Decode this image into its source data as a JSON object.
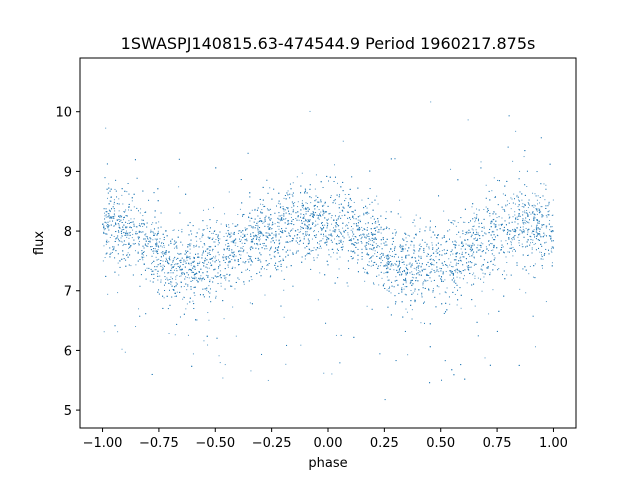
{
  "chart_data": {
    "type": "scatter",
    "title": "1SWASPJ140815.63-474544.9 Period 1960217.875s",
    "xlabel": "phase",
    "ylabel": "flux",
    "xlim": [
      -1.1,
      1.1
    ],
    "ylim": [
      4.7,
      10.9
    ],
    "xticks": [
      -1.0,
      -0.75,
      -0.5,
      -0.25,
      0.0,
      0.25,
      0.5,
      0.75,
      1.0
    ],
    "xtick_labels": [
      "−1.00",
      "−0.75",
      "−0.50",
      "−0.25",
      "0.00",
      "0.25",
      "0.50",
      "0.75",
      "1.00"
    ],
    "yticks": [
      5,
      6,
      7,
      8,
      9,
      10
    ],
    "ytick_labels": [
      "5",
      "6",
      "7",
      "8",
      "9",
      "10"
    ],
    "grid": false,
    "marker_color": "#1f77b4",
    "series": [
      {
        "profile_phase": [
          -1.0,
          -0.9,
          -0.8,
          -0.7,
          -0.6,
          -0.5,
          -0.4,
          -0.3,
          -0.2,
          -0.1,
          0.0,
          0.1,
          0.2,
          0.3,
          0.4,
          0.5,
          0.6,
          0.7,
          0.8,
          0.9,
          1.0
        ],
        "profile_flux": [
          8.1,
          8.05,
          7.8,
          7.4,
          7.45,
          7.5,
          7.75,
          7.9,
          8.0,
          8.15,
          8.1,
          8.0,
          7.8,
          7.45,
          7.4,
          7.45,
          7.6,
          7.85,
          7.95,
          8.15,
          8.1
        ],
        "flux_range": [
          5.0,
          10.5
        ]
      }
    ]
  }
}
